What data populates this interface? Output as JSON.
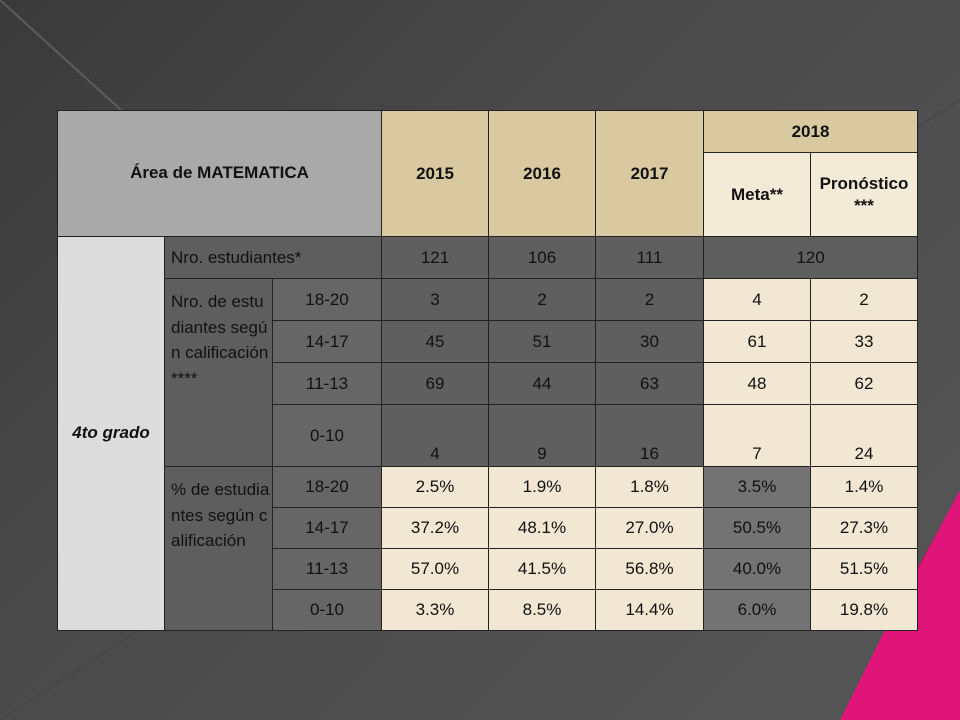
{
  "table": {
    "title": "Área de MATEMATICA",
    "years": [
      "2015",
      "2016",
      "2017"
    ],
    "year_2018": "2018",
    "meta_label": "Meta**",
    "pronostico_label": "Pronóstico ***",
    "grade_label": "4to grado",
    "nro_estudiantes_label": "Nro. estudiantes*",
    "nro_estudiantes": [
      "121",
      "106",
      "111",
      "120"
    ],
    "calif_label": "Nro. de estudiantes según calificación****",
    "calif_rows": [
      {
        "range": "18-20",
        "values": [
          "3",
          "2",
          "2",
          "4",
          "2"
        ]
      },
      {
        "range": "14-17",
        "values": [
          "45",
          "51",
          "30",
          "61",
          "33"
        ]
      },
      {
        "range": "11-13",
        "values": [
          "69",
          "44",
          "63",
          "48",
          "62"
        ]
      },
      {
        "range": "0-10",
        "values": [
          "4",
          "9",
          "16",
          "7",
          "24"
        ]
      }
    ],
    "pct_label": "% de estudiantes según calificación",
    "pct_rows": [
      {
        "range": "18-20",
        "values": [
          "2.5%",
          "1.9%",
          "1.8%",
          "3.5%",
          "1.4%"
        ]
      },
      {
        "range": "14-17",
        "values": [
          "37.2%",
          "48.1%",
          "27.0%",
          "50.5%",
          "27.3%"
        ]
      },
      {
        "range": "11-13",
        "values": [
          "57.0%",
          "41.5%",
          "56.8%",
          "40.0%",
          "51.5%"
        ]
      },
      {
        "range": "0-10",
        "values": [
          "3.3%",
          "8.5%",
          "14.4%",
          "6.0%",
          "19.8%"
        ]
      }
    ]
  }
}
